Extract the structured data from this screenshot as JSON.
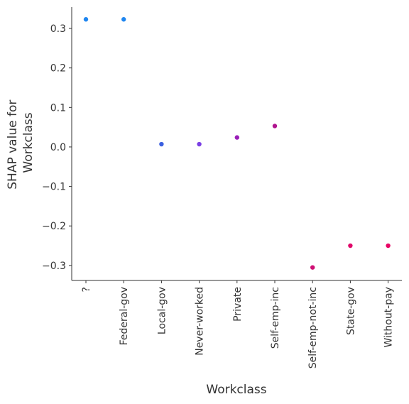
{
  "chart_data": {
    "type": "scatter",
    "title": "",
    "xlabel": "Workclass",
    "ylabel_lines": [
      "SHAP value for",
      "Workclass"
    ],
    "categories": [
      "?",
      "Federal-gov",
      "Local-gov",
      "Never-worked",
      "Private",
      "Self-emp-inc",
      "Self-emp-not-inc",
      "State-gov",
      "Without-pay"
    ],
    "values": [
      0.323,
      0.323,
      0.007,
      0.007,
      0.024,
      0.053,
      -0.305,
      -0.25,
      -0.25
    ],
    "point_colors": [
      "#1f86f0",
      "#1f86f0",
      "#3b60e0",
      "#7b3fe4",
      "#9a1fb8",
      "#b0148f",
      "#cf0f74",
      "#e0086a",
      "#e80565"
    ],
    "yticks": [
      -0.3,
      -0.2,
      -0.1,
      0.0,
      0.1,
      0.2,
      0.3
    ],
    "ytick_labels": [
      "−0.3",
      "−0.2",
      "−0.1",
      "0.0",
      "0.1",
      "0.2",
      "0.3"
    ],
    "ylim": [
      -0.338,
      0.354
    ],
    "grid": false,
    "legend": "none"
  }
}
